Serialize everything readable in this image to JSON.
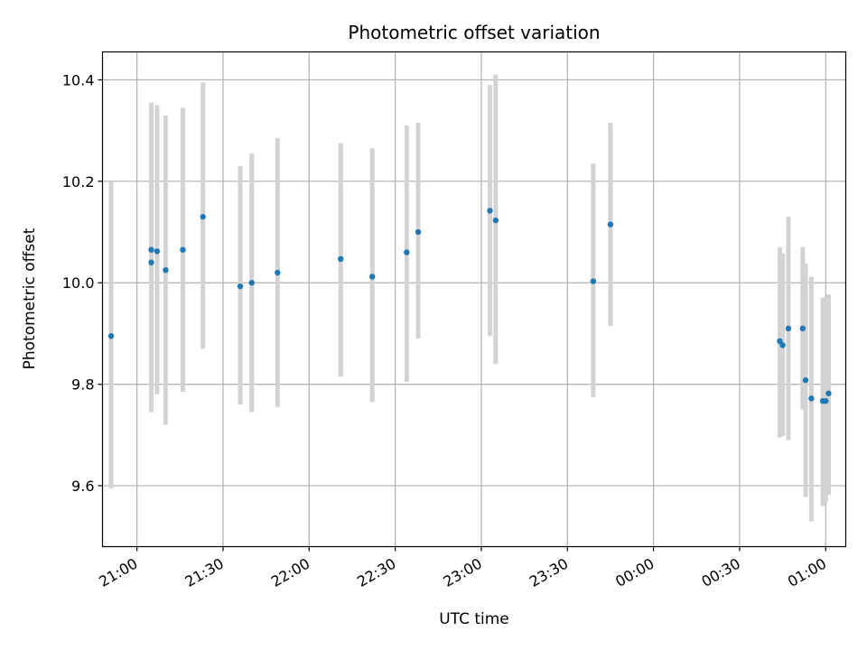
{
  "chart_data": {
    "type": "scatter",
    "title": "Photometric offset variation",
    "xlabel": "UTC time",
    "ylabel": "Photometric offset",
    "grid": true,
    "xlim": [
      "20:48",
      "01:07"
    ],
    "ylim": [
      9.48,
      10.455
    ],
    "x_ticks": [
      "21:00",
      "21:30",
      "22:00",
      "22:30",
      "23:00",
      "23:30",
      "00:00",
      "00:30",
      "01:00"
    ],
    "y_ticks": [
      "9.6",
      "9.8",
      "10.0",
      "10.2",
      "10.4"
    ],
    "colors": {
      "point": "#1f77b4",
      "error_bar": "#d3d3d3",
      "grid": "#b0b0b0"
    },
    "points": [
      {
        "time": "20:51",
        "y": 9.895,
        "low": 9.595,
        "high": 10.2
      },
      {
        "time": "21:05",
        "y": 10.04,
        "low": 9.745,
        "high": 10.355
      },
      {
        "time": "21:05",
        "y": 10.065,
        "low": 9.775,
        "high": 10.35
      },
      {
        "time": "21:07",
        "y": 10.062,
        "low": 9.78,
        "high": 10.35
      },
      {
        "time": "21:10",
        "y": 10.025,
        "low": 9.72,
        "high": 10.33
      },
      {
        "time": "21:16",
        "y": 10.065,
        "low": 9.785,
        "high": 10.345
      },
      {
        "time": "21:23",
        "y": 10.13,
        "low": 9.87,
        "high": 10.395
      },
      {
        "time": "21:36",
        "y": 9.993,
        "low": 9.76,
        "high": 10.23
      },
      {
        "time": "21:40",
        "y": 10.0,
        "low": 9.745,
        "high": 10.255
      },
      {
        "time": "21:49",
        "y": 10.02,
        "low": 9.755,
        "high": 10.285
      },
      {
        "time": "22:11",
        "y": 10.047,
        "low": 9.815,
        "high": 10.275
      },
      {
        "time": "22:22",
        "y": 10.012,
        "low": 9.765,
        "high": 10.265
      },
      {
        "time": "22:34",
        "y": 10.06,
        "low": 9.805,
        "high": 10.31
      },
      {
        "time": "22:38",
        "y": 10.1,
        "low": 9.89,
        "high": 10.315
      },
      {
        "time": "23:03",
        "y": 10.142,
        "low": 9.895,
        "high": 10.39
      },
      {
        "time": "23:05",
        "y": 10.123,
        "low": 9.84,
        "high": 10.41
      },
      {
        "time": "23:39",
        "y": 10.003,
        "low": 9.775,
        "high": 10.235
      },
      {
        "time": "23:45",
        "y": 10.115,
        "low": 9.915,
        "high": 10.315
      },
      {
        "time": "00:44",
        "y": 9.885,
        "low": 9.695,
        "high": 10.07
      },
      {
        "time": "00:45",
        "y": 9.877,
        "low": 9.698,
        "high": 10.058
      },
      {
        "time": "00:47",
        "y": 9.91,
        "low": 9.69,
        "high": 10.13
      },
      {
        "time": "00:52",
        "y": 9.91,
        "low": 9.75,
        "high": 10.07
      },
      {
        "time": "00:53",
        "y": 9.808,
        "low": 9.578,
        "high": 10.038
      },
      {
        "time": "00:55",
        "y": 9.772,
        "low": 9.53,
        "high": 10.012
      },
      {
        "time": "00:59",
        "y": 9.767,
        "low": 9.56,
        "high": 9.97
      },
      {
        "time": "01:00",
        "y": 9.767,
        "low": 9.567,
        "high": 9.972
      },
      {
        "time": "01:01",
        "y": 9.782,
        "low": 9.582,
        "high": 9.977
      }
    ]
  }
}
